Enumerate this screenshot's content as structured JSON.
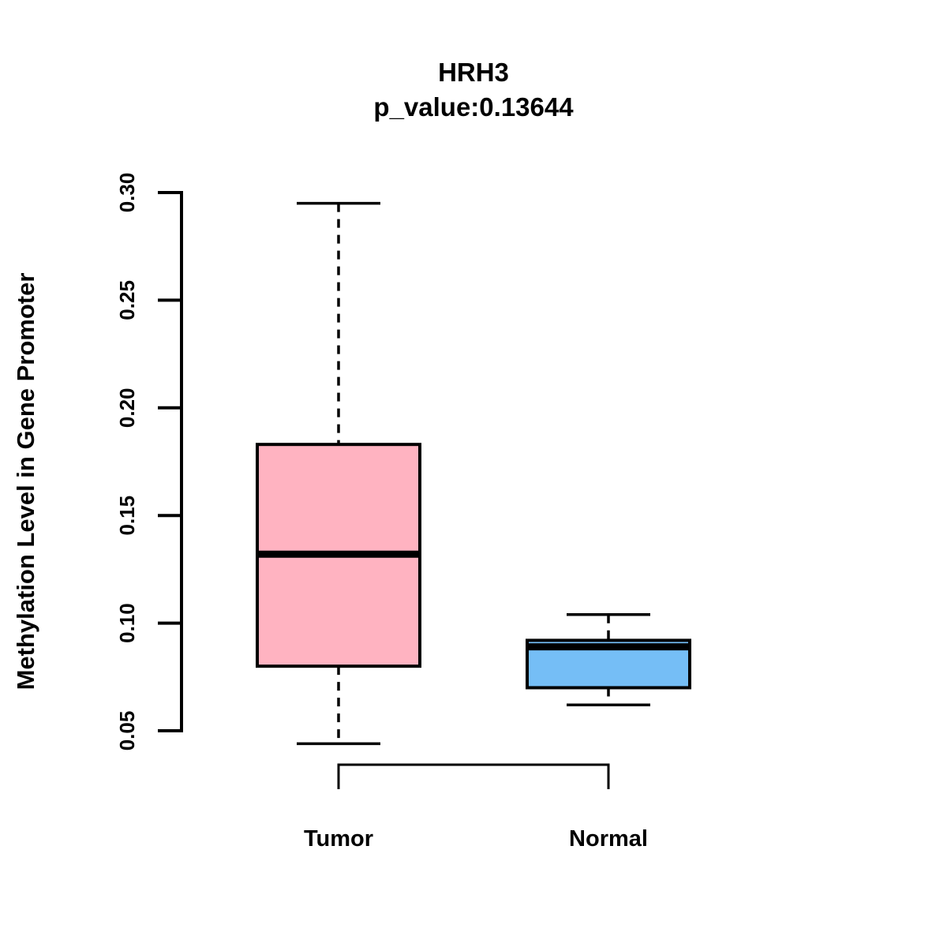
{
  "chart_data": {
    "type": "boxplot",
    "title": "HRH3",
    "subtitle": "p_value:0.13644",
    "ylabel": "Methylation Level in Gene Promoter",
    "xlabel": "",
    "ylim": [
      0.05,
      0.3
    ],
    "yticks": [
      0.05,
      0.1,
      0.15,
      0.2,
      0.25,
      0.3
    ],
    "ytick_labels": [
      "0.05",
      "0.10",
      "0.15",
      "0.20",
      "0.25",
      "0.30"
    ],
    "grid": false,
    "legend": "none",
    "groups": [
      {
        "label": "Tumor",
        "fill_color": "#FFB3C1",
        "stats": {
          "lower_whisker": 0.044,
          "q1": 0.08,
          "median": 0.132,
          "q3": 0.183,
          "upper_whisker": 0.295
        }
      },
      {
        "label": "Normal",
        "fill_color": "#75BEF6",
        "stats": {
          "lower_whisker": 0.062,
          "q1": 0.07,
          "median": 0.089,
          "q3": 0.092,
          "upper_whisker": 0.104
        }
      }
    ],
    "comparison_bracket": {
      "between": [
        "Tumor",
        "Normal"
      ]
    },
    "styles": {
      "box_border_color": "#000000",
      "median_color": "#000000",
      "whisker_style": "dashed",
      "axis_color": "#000000",
      "text_color": "#000000",
      "background_color": "#FFFFFF"
    }
  }
}
